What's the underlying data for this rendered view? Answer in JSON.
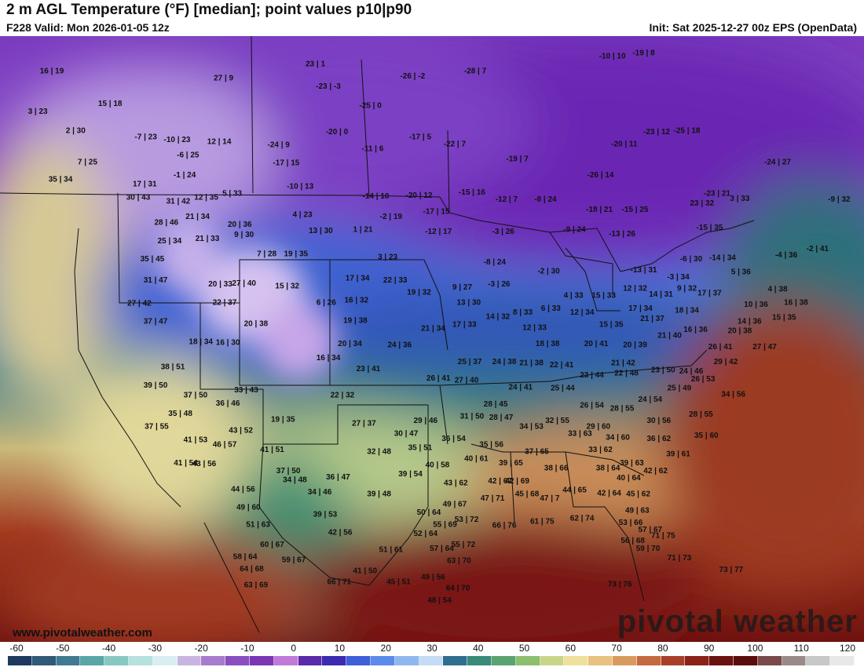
{
  "header": {
    "title": "2 m AGL Temperature (°F) [median]; point values p10|p90",
    "valid": "F228 Valid: Mon 2026-01-05 12z",
    "init": "Init: Sat 2025-12-27 00z EPS (OpenData)"
  },
  "branding": {
    "watermark": "pivotal weather",
    "website": "www.pivotalweather.com"
  },
  "colorbar": {
    "ticks": [
      "-60",
      "-50",
      "-40",
      "-30",
      "-20",
      "-10",
      "0",
      "10",
      "20",
      "30",
      "40",
      "50",
      "60",
      "70",
      "80",
      "90",
      "100",
      "110",
      "120"
    ],
    "colors": [
      "#1e3a5f",
      "#2f5a78",
      "#3f7a90",
      "#58a6a6",
      "#86c9c0",
      "#b5e1de",
      "#d8eef2",
      "#c9b6e0",
      "#a77ccd",
      "#8a4fbf",
      "#7a36b3",
      "#c07ad8",
      "#5b2aa8",
      "#3b2bb0",
      "#3d5fd8",
      "#5b8ae8",
      "#8fb8ee",
      "#c6dcf2",
      "#2e6f8f",
      "#3a8a7a",
      "#5aa36e",
      "#8cbf6e",
      "#c9d68a",
      "#efe09c",
      "#e9c27e",
      "#d99a5e",
      "#c46a3e",
      "#a84029",
      "#8a2219",
      "#6a1210",
      "#5a0d0d",
      "#7a4a4a",
      "#9a8a8a",
      "#c8c8c8",
      "#e8e8e8"
    ]
  },
  "points": [
    {
      "t": "16 | 19",
      "lon": -135.2,
      "lat": 59.5
    },
    {
      "t": "23 | 1",
      "lon": -110.8,
      "lat": 60.2
    },
    {
      "t": "27 | 9",
      "lon": -119.3,
      "lat": 58.8
    },
    {
      "t": "3 | 23",
      "lon": -136.5,
      "lat": 55.5
    },
    {
      "t": "15 | 18",
      "lon": -129.8,
      "lat": 56.3
    },
    {
      "t": "-23 | -3",
      "lon": -109.6,
      "lat": 58.0
    },
    {
      "t": "-26 | -2",
      "lon": -101.8,
      "lat": 59.0
    },
    {
      "t": "-28 | 7",
      "lon": -96.0,
      "lat": 59.5
    },
    {
      "t": "-10 | 10",
      "lon": -83.3,
      "lat": 61.0
    },
    {
      "t": "-19 | 8",
      "lon": -80.4,
      "lat": 61.3
    },
    {
      "t": "2 | 30",
      "lon": -133.0,
      "lat": 53.6
    },
    {
      "t": "-25 | 0",
      "lon": -105.7,
      "lat": 56.1
    },
    {
      "t": "-7 | 23",
      "lon": -126.5,
      "lat": 53.0
    },
    {
      "t": "-10 | 23",
      "lon": -123.6,
      "lat": 52.7
    },
    {
      "t": "12 | 14",
      "lon": -119.7,
      "lat": 52.5
    },
    {
      "t": "-24 | 9",
      "lon": -114.2,
      "lat": 52.2
    },
    {
      "t": "-20 | 0",
      "lon": -108.8,
      "lat": 53.5
    },
    {
      "t": "-17 | 5",
      "lon": -101.1,
      "lat": 53.0
    },
    {
      "t": "-22 | 7",
      "lon": -97.9,
      "lat": 52.3
    },
    {
      "t": "-23 | 12",
      "lon": -79.2,
      "lat": 53.5
    },
    {
      "t": "-25 | 18",
      "lon": -76.4,
      "lat": 53.6
    },
    {
      "t": "-20 | 11",
      "lon": -82.2,
      "lat": 52.3
    },
    {
      "t": "-24 | 27",
      "lon": -68.0,
      "lat": 50.5
    },
    {
      "t": "-11 | 6",
      "lon": -105.5,
      "lat": 51.8
    },
    {
      "t": "-6 | 25",
      "lon": -122.6,
      "lat": 51.2
    },
    {
      "t": "-17 | 15",
      "lon": -113.5,
      "lat": 50.4
    },
    {
      "t": "-19 | 7",
      "lon": -92.1,
      "lat": 50.8
    },
    {
      "t": "7 | 25",
      "lon": -131.9,
      "lat": 50.5
    },
    {
      "t": "35 | 34",
      "lon": -134.4,
      "lat": 48.8
    },
    {
      "t": "-1 | 24",
      "lon": -122.9,
      "lat": 49.2
    },
    {
      "t": "-26 | 14",
      "lon": -84.4,
      "lat": 49.2
    },
    {
      "t": "17 | 31",
      "lon": -126.6,
      "lat": 48.3
    },
    {
      "t": "-10 | 13",
      "lon": -112.2,
      "lat": 48.1
    },
    {
      "t": "5 | 33",
      "lon": -118.5,
      "lat": 47.4
    },
    {
      "t": "-14 | 10",
      "lon": -105.2,
      "lat": 47.1
    },
    {
      "t": "-20 | 12",
      "lon": -101.2,
      "lat": 47.2
    },
    {
      "t": "-15 | 16",
      "lon": -96.3,
      "lat": 47.5
    },
    {
      "t": "-23 | 21",
      "lon": -73.6,
      "lat": 47.4
    },
    {
      "t": "-9 | 32",
      "lon": -62.3,
      "lat": 46.8
    },
    {
      "t": "30 | 43",
      "lon": -127.2,
      "lat": 47.0
    },
    {
      "t": "12 | 35",
      "lon": -120.9,
      "lat": 47.0
    },
    {
      "t": "31 | 42",
      "lon": -123.5,
      "lat": 46.6
    },
    {
      "t": "-2 | 19",
      "lon": -103.8,
      "lat": 45.1
    },
    {
      "t": "-17 | 15",
      "lon": -99.6,
      "lat": 45.6
    },
    {
      "t": "-12 | 7",
      "lon": -93.1,
      "lat": 46.8
    },
    {
      "t": "-8 | 24",
      "lon": -89.5,
      "lat": 46.8
    },
    {
      "t": "-18 | 21",
      "lon": -84.5,
      "lat": 45.8
    },
    {
      "t": "-15 | 25",
      "lon": -81.2,
      "lat": 45.8
    },
    {
      "t": "23 | 32",
      "lon": -75.0,
      "lat": 46.4
    },
    {
      "t": "3 | 33",
      "lon": -71.5,
      "lat": 46.9
    },
    {
      "t": "4 | 23",
      "lon": -112.0,
      "lat": 45.3
    },
    {
      "t": "28 | 46",
      "lon": -124.6,
      "lat": 44.5
    },
    {
      "t": "21 | 34",
      "lon": -121.7,
      "lat": 45.1
    },
    {
      "t": "20 | 36",
      "lon": -117.8,
      "lat": 44.3
    },
    {
      "t": "13 | 30",
      "lon": -110.3,
      "lat": 43.7
    },
    {
      "t": "1 | 21",
      "lon": -106.4,
      "lat": 43.8
    },
    {
      "t": "-12 | 17",
      "lon": -99.4,
      "lat": 43.6
    },
    {
      "t": "-3 | 26",
      "lon": -93.4,
      "lat": 43.6
    },
    {
      "t": "-9 | 24",
      "lon": -86.8,
      "lat": 43.8
    },
    {
      "t": "-13 | 26",
      "lon": -82.4,
      "lat": 43.4
    },
    {
      "t": "-15 | 35",
      "lon": -74.3,
      "lat": 44.0
    },
    {
      "t": "25 | 34",
      "lon": -124.3,
      "lat": 42.7
    },
    {
      "t": "21 | 33",
      "lon": -120.8,
      "lat": 42.9
    },
    {
      "t": "9 | 30",
      "lon": -117.4,
      "lat": 43.3
    },
    {
      "t": "7 | 28",
      "lon": -115.3,
      "lat": 41.4
    },
    {
      "t": "19 | 35",
      "lon": -112.6,
      "lat": 41.4
    },
    {
      "t": "3 | 23",
      "lon": -104.1,
      "lat": 41.1
    },
    {
      "t": "-8 | 24",
      "lon": -94.2,
      "lat": 40.6
    },
    {
      "t": "-2 | 30",
      "lon": -89.2,
      "lat": 39.7
    },
    {
      "t": "-13 | 31",
      "lon": -80.4,
      "lat": 39.8
    },
    {
      "t": "-6 | 30",
      "lon": -76.0,
      "lat": 40.9
    },
    {
      "t": "-14 | 34",
      "lon": -73.1,
      "lat": 41.0
    },
    {
      "t": "-4 | 36",
      "lon": -67.2,
      "lat": 41.3
    },
    {
      "t": "-2 | 41",
      "lon": -64.3,
      "lat": 41.9
    },
    {
      "t": "35 | 45",
      "lon": -125.9,
      "lat": 40.9
    },
    {
      "t": "31 | 47",
      "lon": -125.6,
      "lat": 38.8
    },
    {
      "t": "20 | 33",
      "lon": -119.6,
      "lat": 38.4
    },
    {
      "t": "27 | 40",
      "lon": -117.4,
      "lat": 38.5
    },
    {
      "t": "15 | 32",
      "lon": -113.4,
      "lat": 38.2
    },
    {
      "t": "17 | 34",
      "lon": -106.9,
      "lat": 39.0
    },
    {
      "t": "22 | 33",
      "lon": -103.4,
      "lat": 38.8
    },
    {
      "t": "-3 | 26",
      "lon": -93.8,
      "lat": 38.4
    },
    {
      "t": "-3 | 34",
      "lon": -77.2,
      "lat": 39.1
    },
    {
      "t": "5 | 36",
      "lon": -71.4,
      "lat": 39.6
    },
    {
      "t": "4 | 33",
      "lon": -86.9,
      "lat": 37.3
    },
    {
      "t": "15 | 33",
      "lon": -84.1,
      "lat": 37.3
    },
    {
      "t": "12 | 32",
      "lon": -81.2,
      "lat": 38.0
    },
    {
      "t": "14 | 31",
      "lon": -78.8,
      "lat": 37.4
    },
    {
      "t": "9 | 32",
      "lon": -76.4,
      "lat": 38.0
    },
    {
      "t": "17 | 37",
      "lon": -74.3,
      "lat": 37.5
    },
    {
      "t": "4 | 38",
      "lon": -68.0,
      "lat": 37.9
    },
    {
      "t": "19 | 32",
      "lon": -101.2,
      "lat": 37.6
    },
    {
      "t": "9 | 27",
      "lon": -97.2,
      "lat": 38.1
    },
    {
      "t": "22 | 37",
      "lon": -119.2,
      "lat": 36.6
    },
    {
      "t": "6 | 26",
      "lon": -109.8,
      "lat": 36.6
    },
    {
      "t": "16 | 32",
      "lon": -107.0,
      "lat": 36.8
    },
    {
      "t": "13 | 30",
      "lon": -96.6,
      "lat": 36.6
    },
    {
      "t": "6 | 33",
      "lon": -89.0,
      "lat": 36.0
    },
    {
      "t": "12 | 34",
      "lon": -86.1,
      "lat": 35.6
    },
    {
      "t": "17 | 34",
      "lon": -80.7,
      "lat": 36.0
    },
    {
      "t": "18 | 34",
      "lon": -76.4,
      "lat": 35.8
    },
    {
      "t": "10 | 36",
      "lon": -70.0,
      "lat": 36.4
    },
    {
      "t": "16 | 38",
      "lon": -66.3,
      "lat": 36.6
    },
    {
      "t": "27 | 42",
      "lon": -127.1,
      "lat": 36.5
    },
    {
      "t": "8 | 33",
      "lon": -91.6,
      "lat": 35.6
    },
    {
      "t": "14 | 32",
      "lon": -93.9,
      "lat": 35.2
    },
    {
      "t": "17 | 33",
      "lon": -97.0,
      "lat": 34.4
    },
    {
      "t": "21 | 37",
      "lon": -79.6,
      "lat": 35.0
    },
    {
      "t": "14 | 36",
      "lon": -70.6,
      "lat": 34.7
    },
    {
      "t": "15 | 35",
      "lon": -67.4,
      "lat": 35.1
    },
    {
      "t": "37 | 47",
      "lon": -125.6,
      "lat": 34.7
    },
    {
      "t": "20 | 38",
      "lon": -116.3,
      "lat": 34.5
    },
    {
      "t": "19 | 38",
      "lon": -107.1,
      "lat": 34.8
    },
    {
      "t": "21 | 34",
      "lon": -99.9,
      "lat": 34.0
    },
    {
      "t": "12 | 33",
      "lon": -90.5,
      "lat": 34.1
    },
    {
      "t": "15 | 35",
      "lon": -83.4,
      "lat": 34.4
    },
    {
      "t": "16 | 36",
      "lon": -75.6,
      "lat": 33.9
    },
    {
      "t": "20 | 38",
      "lon": -71.5,
      "lat": 33.8
    },
    {
      "t": "21 | 40",
      "lon": -78.0,
      "lat": 33.3
    },
    {
      "t": "18 | 34",
      "lon": -121.4,
      "lat": 32.7
    },
    {
      "t": "16 | 30",
      "lon": -118.9,
      "lat": 32.6
    },
    {
      "t": "20 | 34",
      "lon": -107.6,
      "lat": 32.5
    },
    {
      "t": "24 | 36",
      "lon": -103.0,
      "lat": 32.4
    },
    {
      "t": "18 | 38",
      "lon": -89.3,
      "lat": 32.5
    },
    {
      "t": "20 | 41",
      "lon": -84.8,
      "lat": 32.5
    },
    {
      "t": "20 | 39",
      "lon": -81.2,
      "lat": 32.4
    },
    {
      "t": "26 | 41",
      "lon": -73.3,
      "lat": 32.2
    },
    {
      "t": "27 | 47",
      "lon": -69.2,
      "lat": 32.2
    },
    {
      "t": "16 | 34",
      "lon": -109.6,
      "lat": 31.1
    },
    {
      "t": "25 | 37",
      "lon": -96.5,
      "lat": 30.7
    },
    {
      "t": "24 | 38",
      "lon": -93.3,
      "lat": 30.7
    },
    {
      "t": "21 | 38",
      "lon": -90.8,
      "lat": 30.6
    },
    {
      "t": "22 | 41",
      "lon": -88.0,
      "lat": 30.4
    },
    {
      "t": "21 | 42",
      "lon": -82.3,
      "lat": 30.6
    },
    {
      "t": "29 | 42",
      "lon": -72.8,
      "lat": 30.7
    },
    {
      "t": "38 | 51",
      "lon": -124.0,
      "lat": 30.2
    },
    {
      "t": "23 | 41",
      "lon": -105.9,
      "lat": 30.0
    },
    {
      "t": "23 | 50",
      "lon": -78.6,
      "lat": 29.9
    },
    {
      "t": "24 | 46",
      "lon": -76.0,
      "lat": 29.8
    },
    {
      "t": "22 | 48",
      "lon": -82.0,
      "lat": 29.6
    },
    {
      "t": "23 | 44",
      "lon": -85.2,
      "lat": 29.4
    },
    {
      "t": "26 | 41",
      "lon": -99.4,
      "lat": 29.1
    },
    {
      "t": "27 | 40",
      "lon": -96.8,
      "lat": 28.9
    },
    {
      "t": "26 | 53",
      "lon": -74.9,
      "lat": 29.0
    },
    {
      "t": "39 | 50",
      "lon": -125.6,
      "lat": 28.4
    },
    {
      "t": "24 | 41",
      "lon": -91.8,
      "lat": 28.2
    },
    {
      "t": "25 | 44",
      "lon": -87.9,
      "lat": 28.1
    },
    {
      "t": "25 | 49",
      "lon": -77.1,
      "lat": 28.1
    },
    {
      "t": "33 | 43",
      "lon": -117.2,
      "lat": 27.9
    },
    {
      "t": "37 | 50",
      "lon": -121.9,
      "lat": 27.4
    },
    {
      "t": "22 | 32",
      "lon": -108.3,
      "lat": 27.4
    },
    {
      "t": "34 | 56",
      "lon": -72.1,
      "lat": 27.5
    },
    {
      "t": "24 | 54",
      "lon": -79.8,
      "lat": 27.0
    },
    {
      "t": "36 | 46",
      "lon": -118.9,
      "lat": 26.6
    },
    {
      "t": "28 | 45",
      "lon": -94.1,
      "lat": 26.5
    },
    {
      "t": "26 | 54",
      "lon": -85.2,
      "lat": 26.4
    },
    {
      "t": "28 | 55",
      "lon": -82.4,
      "lat": 26.1
    },
    {
      "t": "28 | 55",
      "lon": -75.1,
      "lat": 25.5
    },
    {
      "t": "35 | 48",
      "lon": -123.3,
      "lat": 25.6
    },
    {
      "t": "31 | 50",
      "lon": -96.3,
      "lat": 25.3
    },
    {
      "t": "28 | 47",
      "lon": -93.6,
      "lat": 25.2
    },
    {
      "t": "19 | 35",
      "lon": -113.8,
      "lat": 25.0
    },
    {
      "t": "29 | 46",
      "lon": -100.6,
      "lat": 24.9
    },
    {
      "t": "32 | 55",
      "lon": -88.4,
      "lat": 24.9
    },
    {
      "t": "30 | 56",
      "lon": -79.0,
      "lat": 24.9
    },
    {
      "t": "27 | 37",
      "lon": -106.3,
      "lat": 24.6
    },
    {
      "t": "37 | 55",
      "lon": -125.5,
      "lat": 24.3
    },
    {
      "t": "43 | 52",
      "lon": -117.7,
      "lat": 23.9
    },
    {
      "t": "34 | 53",
      "lon": -90.8,
      "lat": 24.3
    },
    {
      "t": "29 | 60",
      "lon": -84.6,
      "lat": 24.3
    },
    {
      "t": "30 | 47",
      "lon": -102.4,
      "lat": 23.6
    },
    {
      "t": "33 | 63",
      "lon": -86.3,
      "lat": 23.6
    },
    {
      "t": "35 | 60",
      "lon": -74.6,
      "lat": 23.4
    },
    {
      "t": "41 | 53",
      "lon": -121.9,
      "lat": 23.0
    },
    {
      "t": "36 | 54",
      "lon": -98.0,
      "lat": 23.1
    },
    {
      "t": "34 | 60",
      "lon": -82.8,
      "lat": 23.2
    },
    {
      "t": "36 | 62",
      "lon": -79.0,
      "lat": 23.1
    },
    {
      "t": "46 | 57",
      "lon": -119.2,
      "lat": 22.5
    },
    {
      "t": "35 | 56",
      "lon": -94.5,
      "lat": 22.5
    },
    {
      "t": "41 | 51",
      "lon": -114.8,
      "lat": 22.0
    },
    {
      "t": "35 | 51",
      "lon": -101.1,
      "lat": 22.2
    },
    {
      "t": "32 | 48",
      "lon": -104.9,
      "lat": 21.8
    },
    {
      "t": "37 | 65",
      "lon": -90.3,
      "lat": 21.8
    },
    {
      "t": "33 | 62",
      "lon": -84.4,
      "lat": 22.0
    },
    {
      "t": "39 | 61",
      "lon": -77.2,
      "lat": 21.6
    },
    {
      "t": "40 | 61",
      "lon": -95.9,
      "lat": 21.1
    },
    {
      "t": "39 | 65",
      "lon": -92.7,
      "lat": 20.7
    },
    {
      "t": "39 | 63",
      "lon": -81.5,
      "lat": 20.7
    },
    {
      "t": "41 | 54",
      "lon": -122.8,
      "lat": 20.7
    },
    {
      "t": "43 | 56",
      "lon": -121.1,
      "lat": 20.6
    },
    {
      "t": "40 | 58",
      "lon": -99.5,
      "lat": 20.5
    },
    {
      "t": "38 | 66",
      "lon": -88.5,
      "lat": 20.2
    },
    {
      "t": "38 | 64",
      "lon": -83.7,
      "lat": 20.2
    },
    {
      "t": "42 | 62",
      "lon": -79.3,
      "lat": 19.9
    },
    {
      "t": "37 | 50",
      "lon": -113.3,
      "lat": 19.9
    },
    {
      "t": "39 | 54",
      "lon": -102.0,
      "lat": 19.6
    },
    {
      "t": "36 | 47",
      "lon": -108.7,
      "lat": 19.3
    },
    {
      "t": "34 | 48",
      "lon": -112.7,
      "lat": 19.0
    },
    {
      "t": "40 | 64",
      "lon": -81.8,
      "lat": 19.2
    },
    {
      "t": "42 | 67",
      "lon": -93.7,
      "lat": 18.9
    },
    {
      "t": "42 | 69",
      "lon": -92.1,
      "lat": 18.9
    },
    {
      "t": "43 | 62",
      "lon": -97.8,
      "lat": 18.7
    },
    {
      "t": "44 | 56",
      "lon": -117.5,
      "lat": 18.1
    },
    {
      "t": "34 | 46",
      "lon": -110.4,
      "lat": 17.8
    },
    {
      "t": "39 | 48",
      "lon": -104.9,
      "lat": 17.6
    },
    {
      "t": "45 | 68",
      "lon": -91.2,
      "lat": 17.6
    },
    {
      "t": "44 | 65",
      "lon": -86.8,
      "lat": 18.0
    },
    {
      "t": "42 | 64",
      "lon": -83.6,
      "lat": 17.7
    },
    {
      "t": "45 | 62",
      "lon": -80.9,
      "lat": 17.6
    },
    {
      "t": "47 | 71",
      "lon": -94.4,
      "lat": 17.2
    },
    {
      "t": "47 | 7",
      "lon": -89.1,
      "lat": 17.2
    },
    {
      "t": "49 | 67",
      "lon": -97.9,
      "lat": 16.6
    },
    {
      "t": "49 | 60",
      "lon": -117.0,
      "lat": 16.3
    },
    {
      "t": "49 | 63",
      "lon": -81.0,
      "lat": 16.0
    },
    {
      "t": "50 | 64",
      "lon": -100.3,
      "lat": 15.8
    },
    {
      "t": "39 | 53",
      "lon": -109.9,
      "lat": 15.6
    },
    {
      "t": "66 | 76",
      "lon": -93.3,
      "lat": 14.5
    },
    {
      "t": "61 | 75",
      "lon": -89.8,
      "lat": 14.9
    },
    {
      "t": "62 | 74",
      "lon": -86.1,
      "lat": 15.2
    },
    {
      "t": "53 | 72",
      "lon": -96.8,
      "lat": 15.1
    },
    {
      "t": "51 | 63",
      "lon": -116.1,
      "lat": 14.6
    },
    {
      "t": "55 | 69",
      "lon": -98.8,
      "lat": 14.6
    },
    {
      "t": "53 | 66",
      "lon": -81.6,
      "lat": 14.8
    },
    {
      "t": "57 | 67",
      "lon": -79.8,
      "lat": 14.1
    },
    {
      "t": "42 | 56",
      "lon": -108.5,
      "lat": 13.8
    },
    {
      "t": "52 | 64",
      "lon": -100.6,
      "lat": 13.7
    },
    {
      "t": "71 | 75",
      "lon": -78.6,
      "lat": 13.5
    },
    {
      "t": "56 | 68",
      "lon": -81.4,
      "lat": 13.0
    },
    {
      "t": "60 | 67",
      "lon": -114.8,
      "lat": 12.6
    },
    {
      "t": "55 | 72",
      "lon": -97.1,
      "lat": 12.6
    },
    {
      "t": "59 | 70",
      "lon": -80.0,
      "lat": 12.2
    },
    {
      "t": "51 | 61",
      "lon": -103.8,
      "lat": 12.1
    },
    {
      "t": "57 | 64",
      "lon": -99.1,
      "lat": 12.2
    },
    {
      "t": "58 | 64",
      "lon": -117.3,
      "lat": 11.4
    },
    {
      "t": "59 | 67",
      "lon": -112.8,
      "lat": 11.1
    },
    {
      "t": "63 | 70",
      "lon": -97.5,
      "lat": 11.0
    },
    {
      "t": "71 | 73",
      "lon": -77.1,
      "lat": 11.3
    },
    {
      "t": "64 | 68",
      "lon": -116.7,
      "lat": 10.2
    },
    {
      "t": "41 | 50",
      "lon": -106.2,
      "lat": 10.0
    },
    {
      "t": "73 | 77",
      "lon": -72.3,
      "lat": 10.1
    },
    {
      "t": "49 | 56",
      "lon": -99.9,
      "lat": 9.4
    },
    {
      "t": "45 | 51",
      "lon": -103.1,
      "lat": 8.9
    },
    {
      "t": "66 | 71",
      "lon": -108.6,
      "lat": 8.9
    },
    {
      "t": "63 | 69",
      "lon": -116.3,
      "lat": 8.6
    },
    {
      "t": "64 | 70",
      "lon": -97.6,
      "lat": 8.3
    },
    {
      "t": "73 | 76",
      "lon": -82.6,
      "lat": 8.7
    },
    {
      "t": "48 | 54",
      "lon": -99.3,
      "lat": 7.1
    }
  ]
}
